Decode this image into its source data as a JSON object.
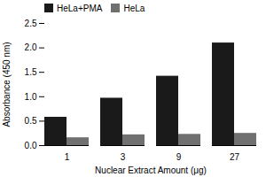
{
  "chart_data": {
    "type": "bar",
    "categories": [
      "1",
      "3",
      "9",
      "27"
    ],
    "series": [
      {
        "name": "HeLa+PMA",
        "color": "#1a1a1a",
        "values": [
          0.58,
          0.97,
          1.42,
          2.1
        ]
      },
      {
        "name": "HeLa",
        "color": "#707070",
        "values": [
          0.16,
          0.22,
          0.23,
          0.25
        ]
      }
    ],
    "xlabel": "Nuclear Extract Amount (μg)",
    "ylabel": "Absorbance (450 nm)",
    "ylim": [
      0,
      2.5
    ],
    "yticks": [
      {
        "value": 0.0,
        "label": "0.0"
      },
      {
        "value": 0.5,
        "label": "0.5"
      },
      {
        "value": 1.0,
        "label": "1.0"
      },
      {
        "value": 1.5,
        "label": "1.5"
      },
      {
        "value": 2.0,
        "label": "2.0"
      },
      {
        "value": 2.5,
        "label": "2.5"
      }
    ],
    "legend": "upper left",
    "grid": false
  }
}
